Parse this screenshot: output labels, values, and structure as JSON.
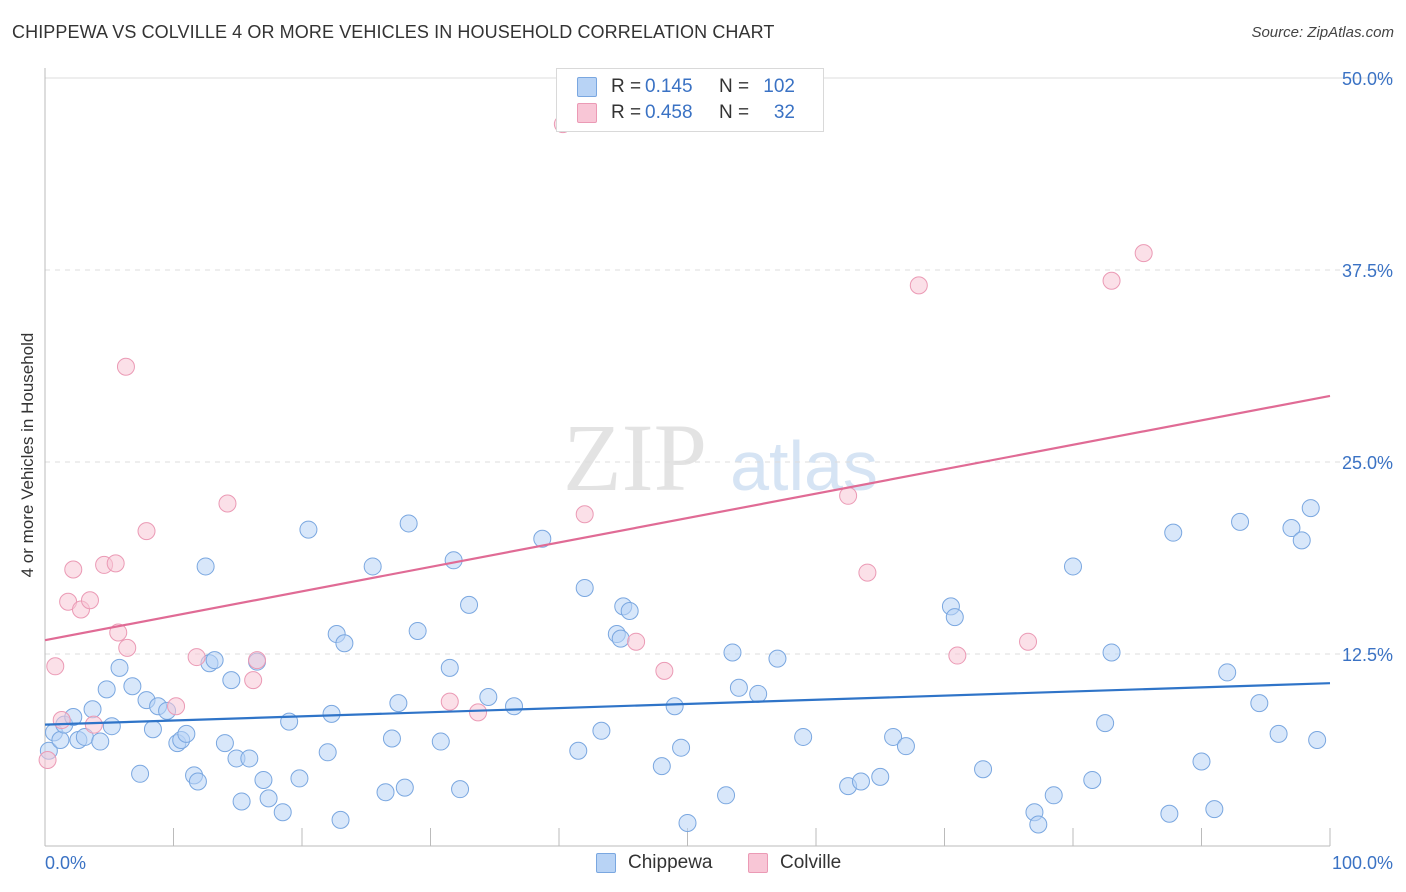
{
  "title": "CHIPPEWA VS COLVILLE 4 OR MORE VEHICLES IN HOUSEHOLD CORRELATION CHART",
  "source": "Source: ZipAtlas.com",
  "watermark": {
    "zip": "ZIP",
    "atlas": "atlas"
  },
  "legend": {
    "rows": [
      {
        "r_label": "R =",
        "r_value": "0.145",
        "n_label": "N =",
        "n_value": "102"
      },
      {
        "r_label": "R =",
        "r_value": "0.458",
        "n_label": "N =",
        "n_value": "32"
      }
    ]
  },
  "colors": {
    "chippewa_fill": "#b8d3f5",
    "chippewa_stroke": "#7aa7e0",
    "chippewa_line": "#2f74c8",
    "colville_fill": "#f8c6d6",
    "colville_stroke": "#eb9ab5",
    "colville_line": "#e06b95",
    "tick_label": "#3a72c4",
    "grid": "#dddddd"
  },
  "chart_data": {
    "type": "scatter",
    "title": "CHIPPEWA VS COLVILLE 4 OR MORE VEHICLES IN HOUSEHOLD CORRELATION CHART",
    "xlabel": "",
    "ylabel": "4 or more Vehicles in Household",
    "xlim": [
      0,
      100
    ],
    "ylim": [
      0,
      50
    ],
    "x_tick_labels": [
      "0.0%",
      "100.0%"
    ],
    "y_ticks": [
      12.5,
      25.0,
      37.5,
      50.0
    ],
    "y_tick_labels": [
      "12.5%",
      "25.0%",
      "37.5%",
      "50.0%"
    ],
    "grid": true,
    "legend_position": "top-center",
    "series": [
      {
        "name": "Chippewa",
        "r": 0.145,
        "n": 102,
        "trend": {
          "x": [
            0,
            100
          ],
          "y": [
            7.9,
            10.6
          ]
        },
        "points": [
          [
            0.3,
            6.2
          ],
          [
            0.7,
            7.4
          ],
          [
            1.2,
            6.9
          ],
          [
            1.5,
            7.9
          ],
          [
            2.2,
            8.4
          ],
          [
            2.6,
            6.9
          ],
          [
            3.1,
            7.1
          ],
          [
            3.7,
            8.9
          ],
          [
            4.3,
            6.8
          ],
          [
            5.2,
            7.8
          ],
          [
            4.8,
            10.2
          ],
          [
            5.8,
            11.6
          ],
          [
            6.8,
            10.4
          ],
          [
            7.4,
            4.7
          ],
          [
            7.9,
            9.5
          ],
          [
            8.4,
            7.6
          ],
          [
            8.8,
            9.1
          ],
          [
            9.5,
            8.8
          ],
          [
            10.3,
            6.7
          ],
          [
            10.6,
            6.9
          ],
          [
            11.0,
            7.3
          ],
          [
            11.6,
            4.6
          ],
          [
            11.9,
            4.2
          ],
          [
            12.5,
            18.2
          ],
          [
            12.8,
            11.9
          ],
          [
            13.2,
            12.1
          ],
          [
            14.0,
            6.7
          ],
          [
            14.5,
            10.8
          ],
          [
            14.9,
            5.7
          ],
          [
            15.3,
            2.9
          ],
          [
            15.9,
            5.7
          ],
          [
            16.5,
            12.0
          ],
          [
            17.0,
            4.3
          ],
          [
            17.4,
            3.1
          ],
          [
            18.5,
            2.2
          ],
          [
            19.0,
            8.1
          ],
          [
            19.8,
            4.4
          ],
          [
            20.5,
            20.6
          ],
          [
            22.0,
            6.1
          ],
          [
            22.3,
            8.6
          ],
          [
            23.0,
            1.7
          ],
          [
            22.7,
            13.8
          ],
          [
            23.3,
            13.2
          ],
          [
            25.5,
            18.2
          ],
          [
            26.5,
            3.5
          ],
          [
            27.0,
            7.0
          ],
          [
            27.5,
            9.3
          ],
          [
            28.0,
            3.8
          ],
          [
            28.3,
            21.0
          ],
          [
            29.0,
            14.0
          ],
          [
            30.8,
            6.8
          ],
          [
            31.5,
            11.6
          ],
          [
            31.8,
            18.6
          ],
          [
            32.3,
            3.7
          ],
          [
            33.0,
            15.7
          ],
          [
            34.5,
            9.7
          ],
          [
            36.5,
            9.1
          ],
          [
            38.7,
            20.0
          ],
          [
            41.5,
            6.2
          ],
          [
            42.0,
            16.8
          ],
          [
            43.3,
            7.5
          ],
          [
            44.5,
            13.8
          ],
          [
            44.8,
            13.5
          ],
          [
            45.0,
            15.6
          ],
          [
            45.5,
            15.3
          ],
          [
            48.0,
            5.2
          ],
          [
            49.0,
            9.1
          ],
          [
            49.5,
            6.4
          ],
          [
            50.0,
            1.5
          ],
          [
            53.0,
            3.3
          ],
          [
            53.5,
            12.6
          ],
          [
            54.0,
            10.3
          ],
          [
            55.5,
            9.9
          ],
          [
            57.0,
            12.2
          ],
          [
            59.0,
            7.1
          ],
          [
            62.5,
            3.9
          ],
          [
            63.5,
            4.2
          ],
          [
            65.0,
            4.5
          ],
          [
            66.0,
            7.1
          ],
          [
            67.0,
            6.5
          ],
          [
            70.5,
            15.6
          ],
          [
            70.8,
            14.9
          ],
          [
            73.0,
            5.0
          ],
          [
            77.0,
            2.2
          ],
          [
            77.3,
            1.4
          ],
          [
            78.5,
            3.3
          ],
          [
            80.0,
            18.2
          ],
          [
            81.5,
            4.3
          ],
          [
            82.5,
            8.0
          ],
          [
            83.0,
            12.6
          ],
          [
            87.5,
            2.1
          ],
          [
            87.8,
            20.4
          ],
          [
            90.0,
            5.5
          ],
          [
            91.0,
            2.4
          ],
          [
            92.0,
            11.3
          ],
          [
            93.0,
            21.1
          ],
          [
            94.5,
            9.3
          ],
          [
            96.0,
            7.3
          ],
          [
            97.0,
            20.7
          ],
          [
            97.8,
            19.9
          ],
          [
            98.5,
            22.0
          ],
          [
            99.0,
            6.9
          ]
        ]
      },
      {
        "name": "Colville",
        "r": 0.458,
        "n": 32,
        "trend": {
          "x": [
            0,
            100
          ],
          "y": [
            13.4,
            29.3
          ]
        },
        "points": [
          [
            0.2,
            5.6
          ],
          [
            0.8,
            11.7
          ],
          [
            1.3,
            8.2
          ],
          [
            1.8,
            15.9
          ],
          [
            2.2,
            18.0
          ],
          [
            2.8,
            15.4
          ],
          [
            3.5,
            16.0
          ],
          [
            3.8,
            7.9
          ],
          [
            4.6,
            18.3
          ],
          [
            5.5,
            18.4
          ],
          [
            5.7,
            13.9
          ],
          [
            6.3,
            31.2
          ],
          [
            6.4,
            12.9
          ],
          [
            7.9,
            20.5
          ],
          [
            10.2,
            9.1
          ],
          [
            11.8,
            12.3
          ],
          [
            14.2,
            22.3
          ],
          [
            16.2,
            10.8
          ],
          [
            16.5,
            12.1
          ],
          [
            31.5,
            9.4
          ],
          [
            33.7,
            8.7
          ],
          [
            40.3,
            47.0
          ],
          [
            42.0,
            21.6
          ],
          [
            46.0,
            13.3
          ],
          [
            48.2,
            11.4
          ],
          [
            62.5,
            22.8
          ],
          [
            64.0,
            17.8
          ],
          [
            68.0,
            36.5
          ],
          [
            71.0,
            12.4
          ],
          [
            76.5,
            13.3
          ],
          [
            83.0,
            36.8
          ],
          [
            85.5,
            38.6
          ]
        ]
      }
    ]
  }
}
